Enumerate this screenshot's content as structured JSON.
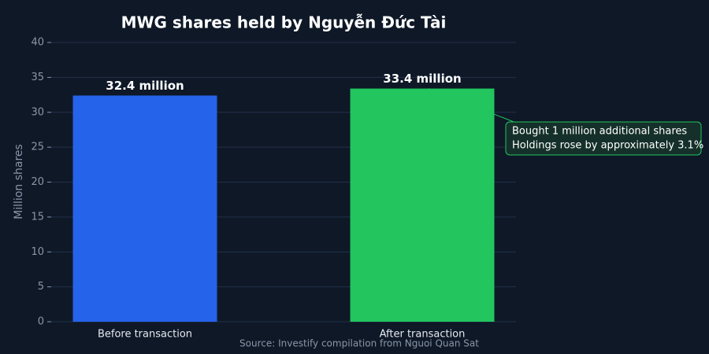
{
  "chart_data": {
    "type": "bar",
    "title": "MWG shares held by Nguyễn Đức Tài",
    "y_label": "Million shares",
    "categories": [
      "Before transaction",
      "After transaction"
    ],
    "values": [
      32.4,
      33.4
    ],
    "value_labels": [
      "32.4 million",
      "33.4 million"
    ],
    "colors": [
      "#2563eb",
      "#22c55e"
    ],
    "ylim": [
      0,
      40
    ],
    "yticks": [
      0,
      5,
      10,
      15,
      20,
      25,
      30,
      35,
      40
    ],
    "grid": true,
    "annotation": {
      "lines": [
        "Bought 1 million additional shares",
        "Holdings rose by approximately 3.1%"
      ]
    },
    "source": "Source: Investify compilation from Nguoi Quan Sat"
  }
}
